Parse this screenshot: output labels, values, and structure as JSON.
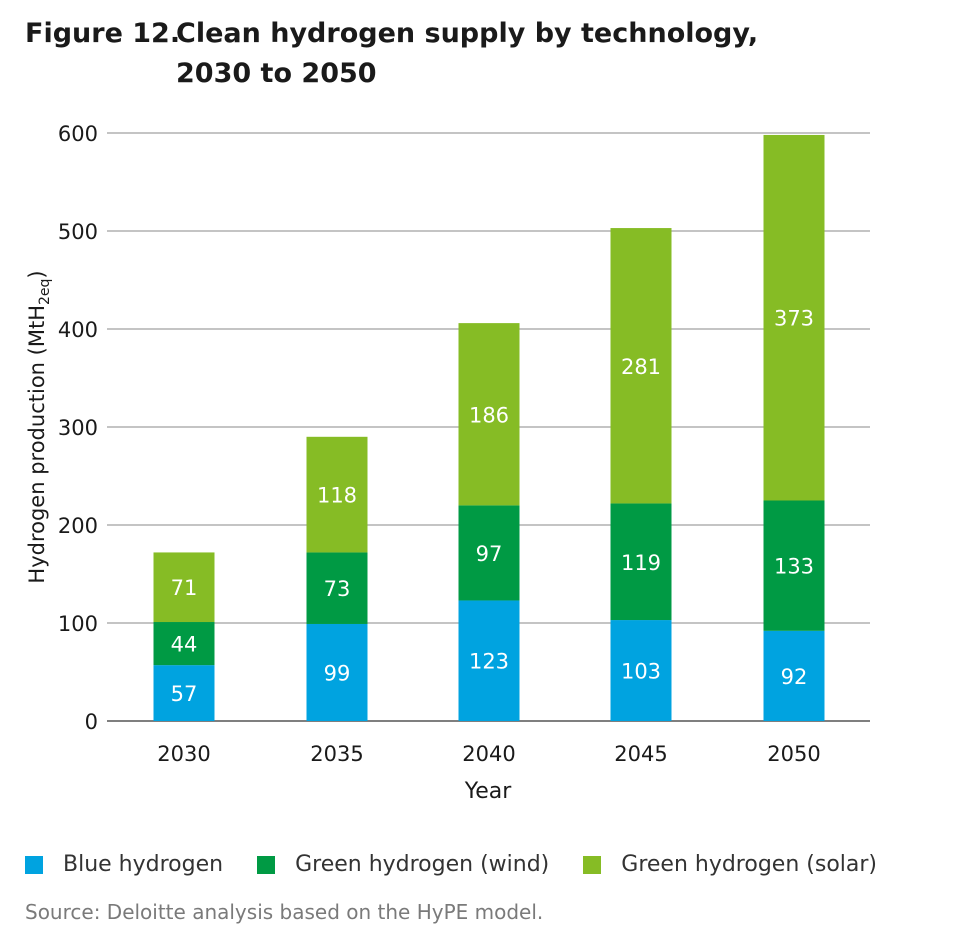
{
  "figure": {
    "number": "Figure 12.",
    "title_line1": "Clean hydrogen supply by technology,",
    "title_line2": "2030 to 2050"
  },
  "chart_data": {
    "type": "bar",
    "stacked": true,
    "categories": [
      "2030",
      "2035",
      "2040",
      "2045",
      "2050"
    ],
    "series": [
      {
        "name": "Blue hydrogen",
        "color": "#00a3e0",
        "values": [
          57,
          99,
          123,
          103,
          92
        ]
      },
      {
        "name": "Green hydrogen (wind)",
        "color": "#009a44",
        "values": [
          44,
          73,
          97,
          119,
          133
        ]
      },
      {
        "name": "Green hydrogen (solar)",
        "color": "#86bc25",
        "values": [
          71,
          118,
          186,
          281,
          373
        ]
      }
    ],
    "xlabel": "Year",
    "ylabel": "Hydrogen production (MtH",
    "ylabel_subscript": "2eq",
    "ylabel_close": ")",
    "ylim": [
      0,
      600
    ],
    "yticks": [
      "0",
      "100",
      "200",
      "300",
      "400",
      "500",
      "600"
    ],
    "grid": true,
    "legend_position": "bottom"
  },
  "source_note": "Source: Deloitte analysis based on the HyPE model."
}
